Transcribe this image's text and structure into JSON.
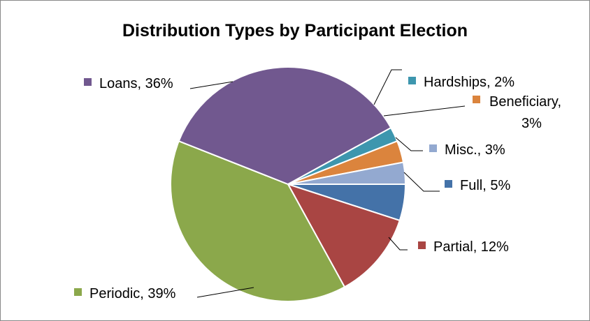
{
  "chart_data": {
    "type": "pie",
    "title": "Distribution Types by Participant Election",
    "slices": [
      {
        "name": "Full",
        "value": 5,
        "label_text": "Full, 5%",
        "color": "#4472A8"
      },
      {
        "name": "Partial",
        "value": 12,
        "label_text": "Partial, 12%",
        "color": "#A94543"
      },
      {
        "name": "Periodic",
        "value": 39,
        "label_text": "Periodic, 39%",
        "color": "#8BA84B"
      },
      {
        "name": "Loans",
        "value": 36,
        "label_text": "Loans, 36%",
        "color": "#71588F"
      },
      {
        "name": "Hardships",
        "value": 2,
        "label_text": "Hardships, 2%",
        "color": "#3D96AE"
      },
      {
        "name": "Beneficiary",
        "value": 3,
        "label_text": [
          "Beneficiary,",
          "3%"
        ],
        "color": "#DB843D"
      },
      {
        "name": "Misc.",
        "value": 3,
        "label_text": "Misc., 3%",
        "color": "#93A9D0"
      }
    ],
    "legend": "inline-labels"
  }
}
